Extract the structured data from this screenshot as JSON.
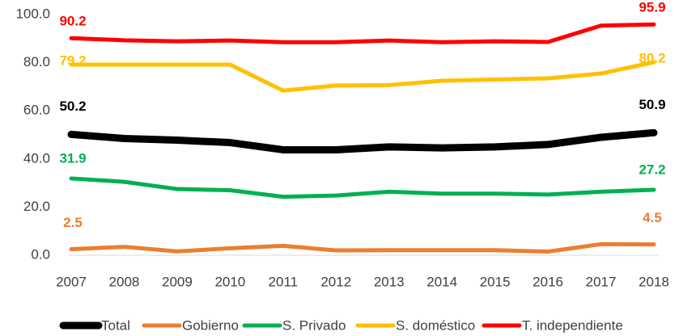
{
  "chart_data": {
    "type": "line",
    "x": [
      2007,
      2008,
      2009,
      2010,
      2011,
      2012,
      2013,
      2014,
      2015,
      2016,
      2017,
      2018
    ],
    "xlim": [
      2007,
      2018
    ],
    "xticks": [
      2007,
      2008,
      2009,
      2010,
      2011,
      2012,
      2013,
      2014,
      2015,
      2016,
      2017,
      2018
    ],
    "ylim": [
      0,
      100
    ],
    "yticks": [
      {
        "value": 0,
        "label": "0.0"
      },
      {
        "value": 20,
        "label": "20.0"
      },
      {
        "value": 40,
        "label": "40.0"
      },
      {
        "value": 60,
        "label": "60.0"
      },
      {
        "value": 80,
        "label": "80.0"
      },
      {
        "value": 100,
        "label": "100.0"
      }
    ],
    "grid": false,
    "legend": "bottom",
    "series": [
      {
        "name": "Total",
        "color": "#000000",
        "values": [
          50.2,
          48.5,
          47.8,
          46.8,
          43.8,
          43.8,
          45.0,
          44.6,
          45.0,
          46.0,
          49.0,
          50.9
        ],
        "value_labels": [
          "50.2",
          null,
          null,
          null,
          null,
          null,
          null,
          null,
          null,
          null,
          null,
          "50.9"
        ]
      },
      {
        "name": "Gobierno",
        "color": "#ed7d31",
        "values": [
          2.5,
          3.5,
          1.6,
          2.9,
          3.9,
          2.0,
          2.1,
          2.1,
          2.1,
          1.5,
          4.6,
          4.5
        ],
        "value_labels": [
          "2.5",
          null,
          null,
          null,
          null,
          null,
          null,
          null,
          null,
          null,
          null,
          "4.5"
        ]
      },
      {
        "name": "S. Privado",
        "color": "#00b050",
        "values": [
          31.9,
          30.5,
          27.5,
          27.0,
          24.3,
          24.8,
          26.4,
          25.6,
          25.6,
          25.2,
          26.4,
          27.2
        ],
        "value_labels": [
          "31.9",
          null,
          null,
          null,
          null,
          null,
          null,
          null,
          null,
          null,
          null,
          "27.2"
        ]
      },
      {
        "name": "S. doméstico",
        "color": "#ffc000",
        "values": [
          79.2,
          79.2,
          79.2,
          79.2,
          68.4,
          70.5,
          70.7,
          72.5,
          73.0,
          73.5,
          75.5,
          80.2
        ],
        "value_labels": [
          "79.2",
          null,
          null,
          null,
          null,
          null,
          null,
          null,
          null,
          null,
          null,
          "80.2"
        ]
      },
      {
        "name": "T. independiente",
        "color": "#ff0000",
        "values": [
          90.2,
          89.3,
          88.9,
          89.2,
          88.5,
          88.5,
          89.2,
          88.5,
          88.9,
          88.6,
          95.4,
          95.9
        ],
        "value_labels": [
          "90.2",
          null,
          null,
          null,
          null,
          null,
          null,
          null,
          null,
          null,
          null,
          "95.9"
        ]
      }
    ]
  }
}
